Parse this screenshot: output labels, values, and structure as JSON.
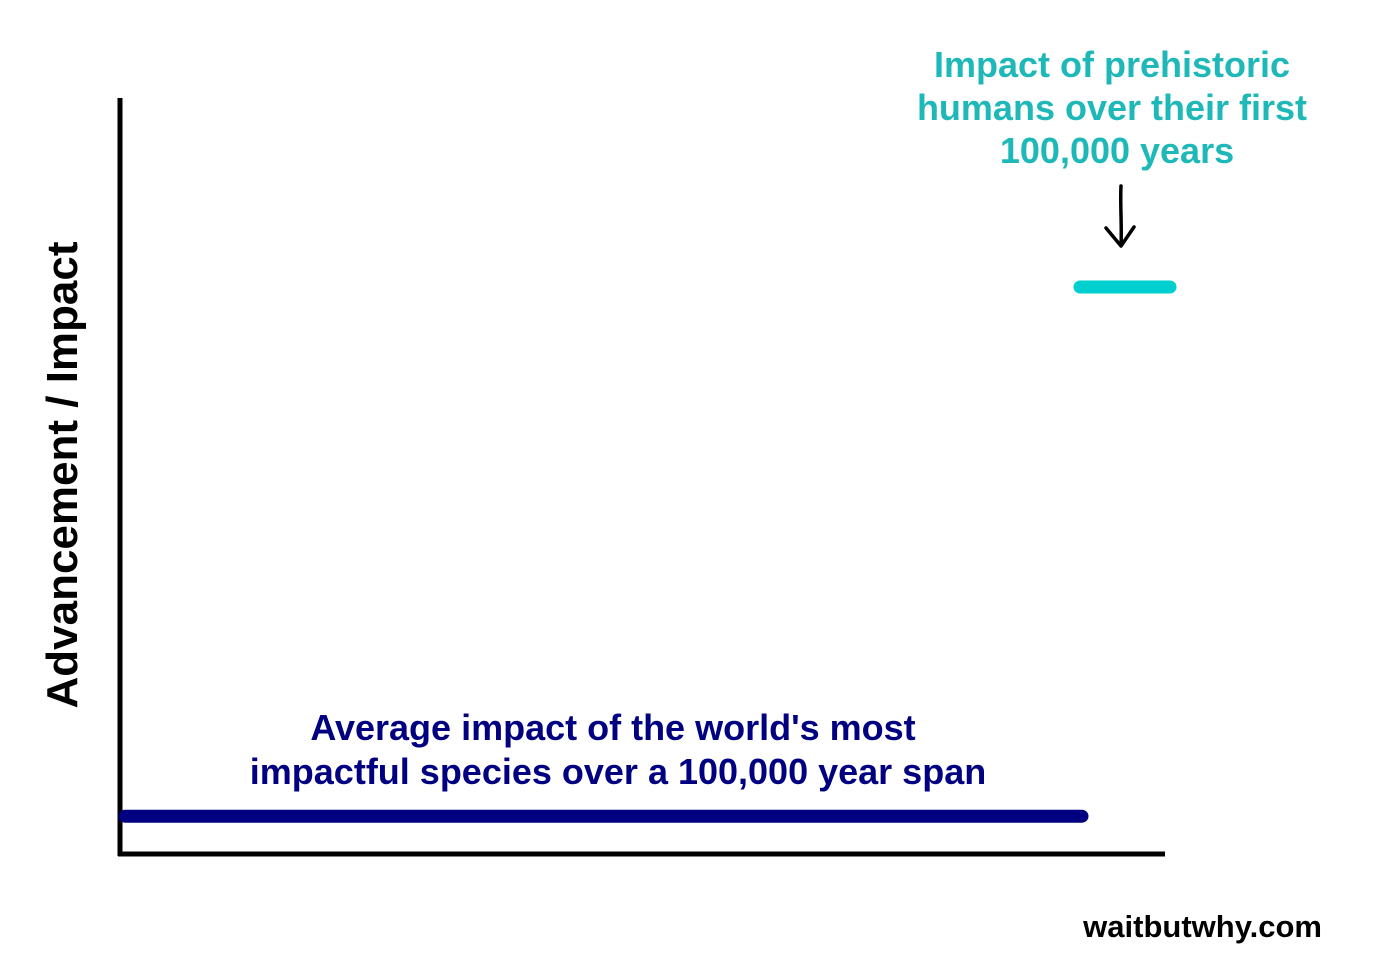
{
  "chart_data": {
    "type": "line",
    "title": "",
    "xlabel": "",
    "ylabel": "Advancement / Impact",
    "series": [
      {
        "name": "Average impact of the world's most impactful species over a 100,000 year span",
        "x": [
          0,
          100000
        ],
        "y": [
          0.05,
          0.05
        ],
        "color": "#000080"
      },
      {
        "name": "Impact of prehistoric humans over their first 100,000 years",
        "x": [
          0,
          100000
        ],
        "y": [
          0.75,
          0.75
        ],
        "color": "#00cfcf"
      }
    ],
    "annotations": [
      {
        "lines": [
          "Average impact of the world's most",
          "impactful species over a 100,000 year span"
        ],
        "color": "#000080"
      },
      {
        "lines": [
          "Impact of prehistoric",
          "humans over their first",
          "100,000 years"
        ],
        "color": "#1fb8b8",
        "arrow": "down"
      }
    ],
    "grid": false,
    "legend": "none"
  },
  "credit": "waitbutwhy.com"
}
